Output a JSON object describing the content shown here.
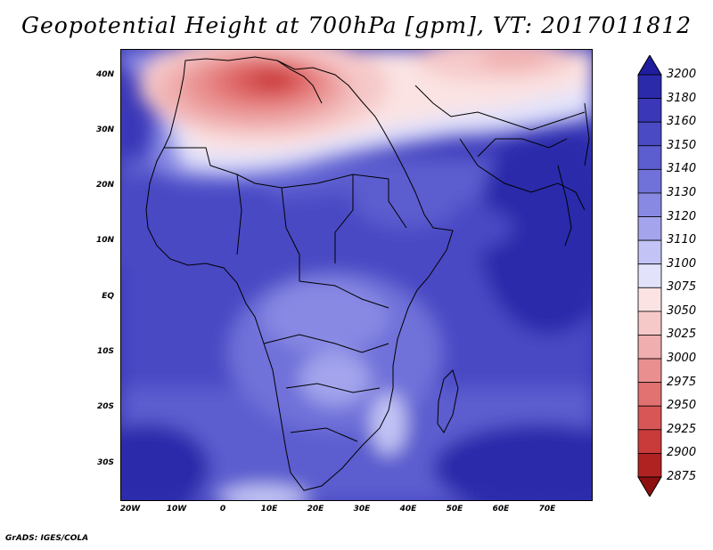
{
  "title": "Geopotential Height at 700hPa [gpm], VT: 2017011812",
  "footer": "GrADS: IGES/COLA",
  "map": {
    "lat_labels": [
      "40N",
      "30N",
      "20N",
      "10N",
      "EQ",
      "10S",
      "20S",
      "30S"
    ],
    "lon_labels": [
      "20W",
      "10W",
      "0",
      "10E",
      "20E",
      "30E",
      "40E",
      "50E",
      "60E",
      "70E"
    ],
    "lon_range": [
      -22,
      80
    ],
    "lat_range": [
      -37,
      45
    ]
  },
  "colorbar": {
    "levels": [
      "3200",
      "3180",
      "3160",
      "3150",
      "3140",
      "3130",
      "3120",
      "3110",
      "3100",
      "3075",
      "3050",
      "3025",
      "3000",
      "2975",
      "2950",
      "2925",
      "2900",
      "2875"
    ],
    "colors": [
      "#1f1d9e",
      "#2b2aab",
      "#3a38b8",
      "#4a4ac4",
      "#5c5dcf",
      "#7071d9",
      "#8889e3",
      "#a3a4ec",
      "#c3c4f5",
      "#e2e3fb",
      "#fbe3e3",
      "#f6c9c9",
      "#f0aeae",
      "#e98f8f",
      "#e27171",
      "#d95656",
      "#c93b3b",
      "#b02222",
      "#8c1010"
    ]
  }
}
